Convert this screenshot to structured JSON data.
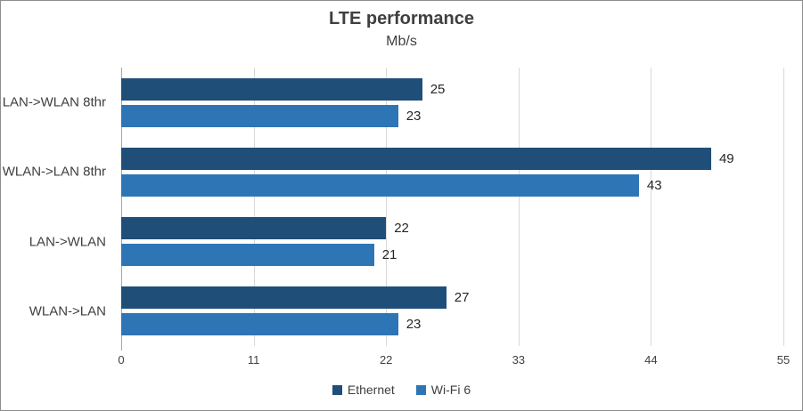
{
  "chart_data": {
    "type": "bar",
    "orientation": "horizontal",
    "title": "LTE performance",
    "subtitle": "Mb/s",
    "xlabel": "",
    "ylabel": "",
    "categories": [
      "LAN->WLAN 8thr",
      "WLAN->LAN 8thr",
      "LAN->WLAN",
      "WLAN->LAN"
    ],
    "series": [
      {
        "name": "Ethernet",
        "color": "#1F4E79",
        "values": [
          25,
          49,
          22,
          27
        ]
      },
      {
        "name": "Wi-Fi 6",
        "color": "#2E75B6",
        "values": [
          23,
          43,
          21,
          23
        ]
      }
    ],
    "xlim": [
      0,
      55
    ],
    "xticks": [
      0,
      11,
      22,
      33,
      44,
      55
    ],
    "grid": true,
    "data_labels": true,
    "legend_position": "bottom",
    "gridline_color": "#D9D9D9",
    "axis_line_color": "#A6A6A6",
    "frame_border_color": "#8E8E8E"
  }
}
